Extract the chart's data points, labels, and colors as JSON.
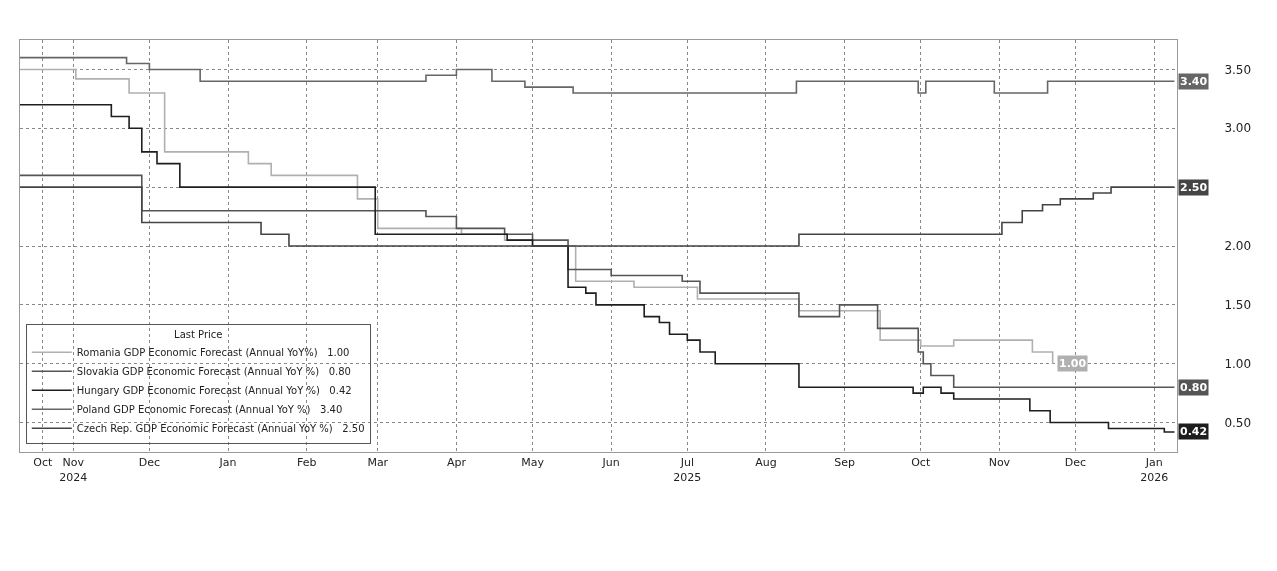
{
  "chart_data": {
    "type": "step",
    "legend_title": "Last Price",
    "legend": "bottom left",
    "grid": true,
    "line_style": "solid",
    "marker": "none",
    "xlim": [
      "2024-10-11",
      "2026-01-10"
    ],
    "xticks": [
      {
        "value": "2024-10-20",
        "label": "Oct"
      },
      {
        "value": "2024-11-01",
        "label": "Nov\n2024"
      },
      {
        "value": "2024-12-01",
        "label": "Dec"
      },
      {
        "value": "2025-01-01",
        "label": "Jan"
      },
      {
        "value": "2025-02-01",
        "label": "Feb"
      },
      {
        "value": "2025-03-01",
        "label": "Mar"
      },
      {
        "value": "2025-04-01",
        "label": "Apr"
      },
      {
        "value": "2025-05-01",
        "label": "May"
      },
      {
        "value": "2025-06-01",
        "label": "Jun"
      },
      {
        "value": "2025-07-01",
        "label": "Jul\n2025"
      },
      {
        "value": "2025-08-01",
        "label": "Aug"
      },
      {
        "value": "2025-09-01",
        "label": "Sep"
      },
      {
        "value": "2025-10-01",
        "label": "Oct"
      },
      {
        "value": "2025-11-01",
        "label": "Nov"
      },
      {
        "value": "2025-12-01",
        "label": "Dec"
      },
      {
        "value": "2026-01-01",
        "label": "Jan\n2026"
      }
    ],
    "ylim": [
      0.25,
      3.75
    ],
    "yticks": [
      {
        "value": 0.5,
        "label": "0.50"
      },
      {
        "value": 1.0,
        "label": "1.00"
      },
      {
        "value": 1.5,
        "label": "1.50"
      },
      {
        "value": 2.0,
        "label": "2.00"
      },
      {
        "value": 2.5,
        "label": null
      },
      {
        "value": 3.0,
        "label": "3.00"
      },
      {
        "value": 3.5,
        "label": "3.50"
      }
    ],
    "series": [
      {
        "name": "Romania GDP Economic Forecast (Annual YoY%)   1.00",
        "color": "#b0b0b0",
        "x": [
          "2024-10-11",
          "2024-11-02",
          "2024-11-23",
          "2024-12-07",
          "2025-01-09",
          "2025-01-18",
          "2025-02-21",
          "2025-03-01",
          "2025-04-03",
          "2025-04-20",
          "2025-05-01",
          "2025-05-18",
          "2025-06-10",
          "2025-07-05",
          "2025-08-14",
          "2025-09-15",
          "2025-10-01",
          "2025-10-14",
          "2025-11-14",
          "2025-11-22"
        ],
        "values": [
          3.5,
          3.42,
          3.3,
          2.8,
          2.7,
          2.6,
          2.4,
          2.15,
          2.1,
          2.05,
          2.0,
          1.7,
          1.65,
          1.55,
          1.45,
          1.2,
          1.15,
          1.2,
          1.1,
          1.0
        ],
        "value_labels": [
          null,
          null,
          null,
          null,
          null,
          null,
          null,
          null,
          null,
          null,
          null,
          null,
          null,
          null,
          null,
          null,
          null,
          null,
          null,
          "1.00"
        ]
      },
      {
        "name": "Slovakia GDP Economic Forecast (Annual YoY %)   0.80",
        "color": "#555555",
        "x": [
          "2024-10-11",
          "2024-11-28",
          "2025-03-20",
          "2025-04-01",
          "2025-04-20",
          "2025-05-01",
          "2025-05-15",
          "2025-06-01",
          "2025-06-29",
          "2025-07-06",
          "2025-08-14",
          "2025-08-30",
          "2025-09-14",
          "2025-09-30",
          "2025-10-02",
          "2025-10-05",
          "2025-10-14",
          "2026-01-09"
        ],
        "values": [
          2.6,
          2.3,
          2.25,
          2.15,
          2.1,
          2.05,
          1.8,
          1.75,
          1.7,
          1.6,
          1.4,
          1.5,
          1.3,
          1.1,
          1.0,
          0.9,
          0.8,
          0.8
        ],
        "value_labels": [
          null,
          null,
          null,
          null,
          null,
          null,
          null,
          null,
          null,
          null,
          null,
          null,
          null,
          null,
          null,
          null,
          null,
          "0.80"
        ]
      },
      {
        "name": "Hungary GDP Economic Forecast (Annual YoY %)   0.42",
        "color": "#1e1e1e",
        "x": [
          "2024-10-11",
          "2024-11-16",
          "2024-11-23",
          "2024-11-28",
          "2024-12-04",
          "2024-12-13",
          "2025-02-28",
          "2025-04-21",
          "2025-05-01",
          "2025-05-15",
          "2025-05-22",
          "2025-05-26",
          "2025-06-14",
          "2025-06-20",
          "2025-06-24",
          "2025-07-01",
          "2025-07-06",
          "2025-07-12",
          "2025-08-14",
          "2025-09-28",
          "2025-10-02",
          "2025-10-09",
          "2025-10-14",
          "2025-11-13",
          "2025-11-21",
          "2025-12-14",
          "2026-01-05",
          "2026-01-09"
        ],
        "values": [
          3.2,
          3.1,
          3.0,
          2.8,
          2.7,
          2.5,
          2.1,
          2.05,
          2.0,
          1.65,
          1.6,
          1.5,
          1.4,
          1.35,
          1.25,
          1.2,
          1.1,
          1.0,
          0.8,
          0.75,
          0.8,
          0.75,
          0.7,
          0.6,
          0.5,
          0.45,
          0.42,
          0.42
        ],
        "value_labels": [
          null,
          null,
          null,
          null,
          null,
          null,
          null,
          null,
          null,
          null,
          null,
          null,
          null,
          null,
          null,
          null,
          null,
          null,
          null,
          null,
          null,
          null,
          null,
          null,
          null,
          null,
          null,
          "0.42"
        ]
      },
      {
        "name": "Poland GDP Economic Forecast (Annual YoY %)   3.40",
        "color": "#666666",
        "x": [
          "2024-10-11",
          "2024-11-22",
          "2024-12-01",
          "2024-12-21",
          "2025-03-20",
          "2025-04-01",
          "2025-04-15",
          "2025-04-28",
          "2025-05-17",
          "2025-08-13",
          "2025-09-30",
          "2025-10-03",
          "2025-10-30",
          "2025-11-20",
          "2026-01-09"
        ],
        "values": [
          3.6,
          3.55,
          3.5,
          3.4,
          3.45,
          3.5,
          3.4,
          3.35,
          3.3,
          3.4,
          3.3,
          3.4,
          3.3,
          3.4,
          3.4
        ],
        "value_labels": [
          null,
          null,
          null,
          null,
          null,
          null,
          null,
          null,
          null,
          null,
          null,
          null,
          null,
          null,
          "3.40"
        ]
      },
      {
        "name": "Czech Rep. GDP Economic Forecast (Annual YoY %)   2.50",
        "color": "#444444",
        "x": [
          "2024-10-11",
          "2024-11-28",
          "2025-01-14",
          "2025-01-25",
          "2025-08-14",
          "2025-10-29",
          "2025-11-02",
          "2025-11-10",
          "2025-11-18",
          "2025-11-25",
          "2025-12-08",
          "2025-12-15",
          "2026-01-09"
        ],
        "values": [
          2.5,
          2.2,
          2.1,
          2.0,
          2.1,
          2.1,
          2.2,
          2.3,
          2.35,
          2.4,
          2.45,
          2.5,
          2.5
        ],
        "value_labels": [
          null,
          null,
          null,
          null,
          null,
          null,
          null,
          null,
          null,
          null,
          null,
          null,
          "2.50"
        ]
      }
    ]
  }
}
